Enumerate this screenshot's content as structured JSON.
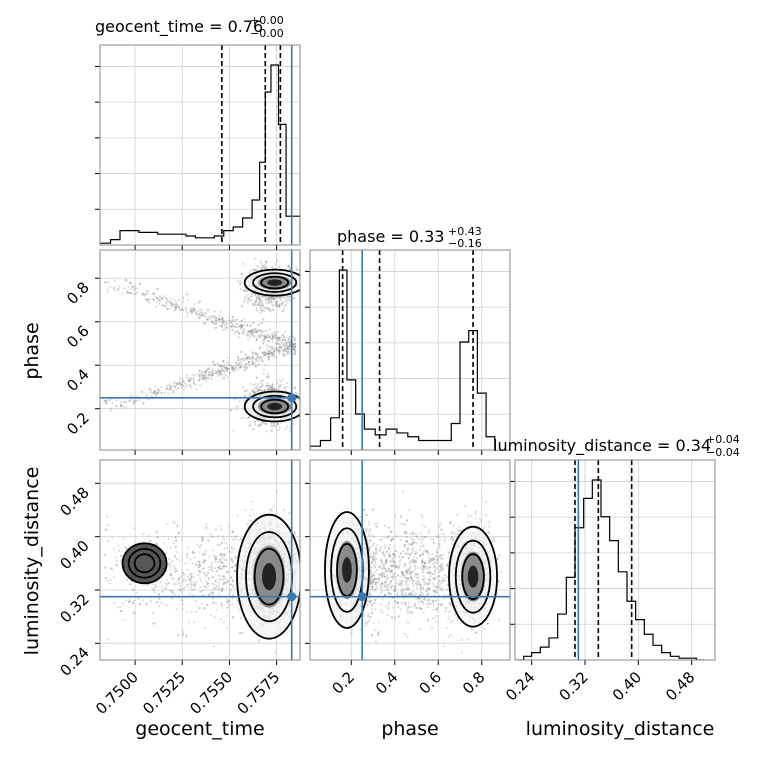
{
  "chart_data": {
    "type": "corner",
    "parameters": [
      "geocent_time",
      "phase",
      "luminosity_distance"
    ],
    "axis_labels": {
      "geocent_time": "geocent_time",
      "phase": "phase",
      "luminosity_distance": "luminosity_distance"
    },
    "ranges": {
      "geocent_time": [
        0.74814,
        0.75874
      ],
      "phase": [
        0.01,
        0.93
      ],
      "luminosity_distance": [
        0.215,
        0.515
      ]
    },
    "ticks": {
      "geocent_time": {
        "values": [
          0.75,
          0.7525,
          0.755,
          0.7575
        ],
        "labels": [
          "0.7500",
          "0.7525",
          "0.7550",
          "0.7575"
        ]
      },
      "phase": {
        "values": [
          0.2,
          0.4,
          0.6,
          0.8
        ],
        "labels": [
          "0.2",
          "0.4",
          "0.6",
          "0.8"
        ]
      },
      "luminosity_distance": {
        "values": [
          0.24,
          0.32,
          0.4,
          0.48
        ],
        "labels": [
          "0.24",
          "0.32",
          "0.40",
          "0.48"
        ]
      }
    },
    "injection": {
      "geocent_time": 0.7583,
      "phase": 0.25,
      "luminosity_distance": 0.31
    },
    "titles": {
      "geocent_time": {
        "text": "geocent_time = 0.76",
        "plus": "+0.00",
        "minus": "−0.00"
      },
      "phase": {
        "text": "phase = 0.33",
        "plus": "+0.43",
        "minus": "−0.16"
      },
      "luminosity_distance": {
        "text": "luminosity_distance = 0.34",
        "plus": "+0.04",
        "minus": "−0.04"
      }
    },
    "quantiles": {
      "geocent_time": [
        0.7546,
        0.7569,
        0.7577
      ],
      "phase": [
        0.16,
        0.33,
        0.76
      ],
      "luminosity_distance": [
        0.305,
        0.34,
        0.39
      ]
    },
    "histograms": {
      "geocent_time": {
        "edges": [
          0.74814,
          0.7487,
          0.7492,
          0.7497,
          0.7502,
          0.7507,
          0.7512,
          0.7517,
          0.7522,
          0.7527,
          0.7532,
          0.7537,
          0.7542,
          0.7547,
          0.7552,
          0.7557,
          0.7562,
          0.7566,
          0.7569,
          0.7572,
          0.7576,
          0.758,
          0.7584,
          0.75874
        ],
        "counts": [
          1,
          3,
          8,
          8,
          7,
          7,
          6,
          6,
          6,
          5,
          4,
          4,
          5,
          8,
          10,
          15,
          25,
          46,
          85,
          100,
          67,
          16,
          16
        ]
      },
      "phase": {
        "edges": [
          0.01,
          0.058,
          0.105,
          0.145,
          0.18,
          0.22,
          0.26,
          0.31,
          0.36,
          0.41,
          0.46,
          0.51,
          0.56,
          0.61,
          0.66,
          0.7,
          0.74,
          0.78,
          0.82,
          0.86
        ],
        "counts": [
          2,
          5,
          17,
          95,
          37,
          19,
          11,
          8,
          11,
          9,
          7,
          5,
          5,
          5,
          14,
          57,
          63,
          30,
          7
        ]
      },
      "luminosity_distance": {
        "edges": [
          0.215,
          0.228,
          0.24,
          0.253,
          0.266,
          0.279,
          0.292,
          0.305,
          0.318,
          0.331,
          0.344,
          0.357,
          0.37,
          0.383,
          0.396,
          0.409,
          0.422,
          0.435,
          0.448,
          0.461,
          0.474,
          0.487,
          0.5
        ],
        "counts": [
          0,
          2,
          4,
          7,
          12,
          25,
          45,
          72,
          88,
          98,
          78,
          65,
          48,
          32,
          22,
          14,
          8,
          4,
          2,
          1,
          1,
          0
        ]
      }
    },
    "grid": true
  }
}
